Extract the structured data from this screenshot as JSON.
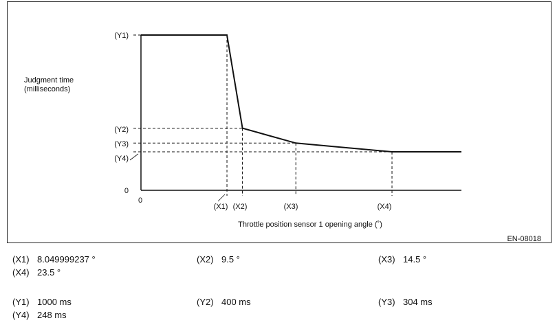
{
  "chart_data": {
    "type": "line",
    "ylabel": "Judgment time (milliseconds)",
    "ylabel_lines": [
      "Judgment time",
      "(milliseconds)"
    ],
    "xlabel": "Throttle position sensor 1 opening angle (˚)",
    "origin_x_label": "0",
    "origin_y_label": "0",
    "x_ticks": [
      "(X1)",
      "(X2)",
      "(X3)",
      "(X4)"
    ],
    "y_ticks": [
      "(Y1)",
      "(Y2)",
      "(Y3)",
      "(Y4)"
    ],
    "x": [
      0,
      8.05,
      9.5,
      14.5,
      23.5,
      30
    ],
    "y": [
      1000,
      1000,
      400,
      304,
      248,
      248
    ],
    "xlim": [
      0,
      30
    ],
    "ylim": [
      0,
      1000
    ],
    "grid": false
  },
  "figure_id": "EN-08018",
  "legend": [
    {
      "key": "(X1)",
      "value": "8.049999237 °"
    },
    {
      "key": "(X2)",
      "value": "9.5 °"
    },
    {
      "key": "(X3)",
      "value": "14.5 °"
    },
    {
      "key": "(X4)",
      "value": "23.5 °"
    },
    {
      "key": "(Y1)",
      "value": "1000 ms"
    },
    {
      "key": "(Y2)",
      "value": "400 ms"
    },
    {
      "key": "(Y3)",
      "value": "304 ms"
    },
    {
      "key": "(Y4)",
      "value": "248 ms"
    }
  ]
}
